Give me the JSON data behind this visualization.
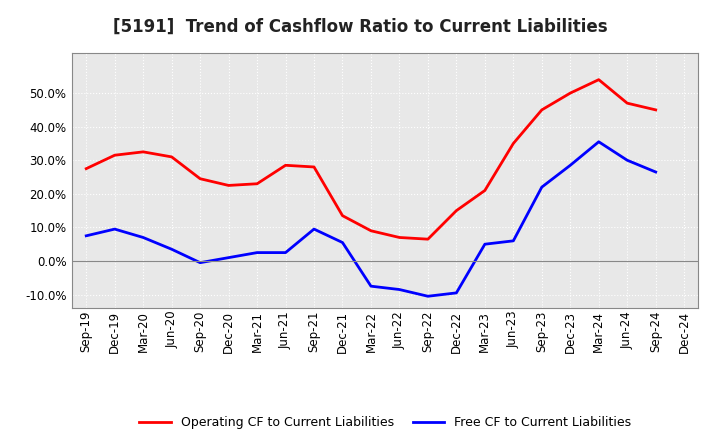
{
  "title": "[5191]  Trend of Cashflow Ratio to Current Liabilities",
  "x_labels": [
    "Sep-19",
    "Dec-19",
    "Mar-20",
    "Jun-20",
    "Sep-20",
    "Dec-20",
    "Mar-21",
    "Jun-21",
    "Sep-21",
    "Dec-21",
    "Mar-22",
    "Jun-22",
    "Sep-22",
    "Dec-22",
    "Mar-23",
    "Jun-23",
    "Sep-23",
    "Dec-23",
    "Mar-24",
    "Jun-24",
    "Sep-24",
    "Dec-24"
  ],
  "operating_cf": [
    27.5,
    31.5,
    32.5,
    31.0,
    24.5,
    22.5,
    23.0,
    28.5,
    28.0,
    13.5,
    9.0,
    7.0,
    6.5,
    15.0,
    21.0,
    35.0,
    45.0,
    50.0,
    54.0,
    47.0,
    45.0,
    null
  ],
  "free_cf": [
    7.5,
    9.5,
    7.0,
    3.5,
    -0.5,
    1.0,
    2.5,
    2.5,
    9.5,
    5.5,
    -7.5,
    -8.5,
    -10.5,
    -9.5,
    5.0,
    6.0,
    22.0,
    28.5,
    35.5,
    30.0,
    26.5,
    null
  ],
  "operating_color": "#ff0000",
  "free_color": "#0000ff",
  "ylim": [
    -14,
    62
  ],
  "yticks": [
    -10.0,
    0.0,
    10.0,
    20.0,
    30.0,
    40.0,
    50.0
  ],
  "background_color": "#ffffff",
  "plot_bg_color": "#e8e8e8",
  "grid_color": "#aaaaaa",
  "legend_operating": "Operating CF to Current Liabilities",
  "legend_free": "Free CF to Current Liabilities",
  "title_fontsize": 12,
  "tick_fontsize": 8.5,
  "legend_fontsize": 9
}
